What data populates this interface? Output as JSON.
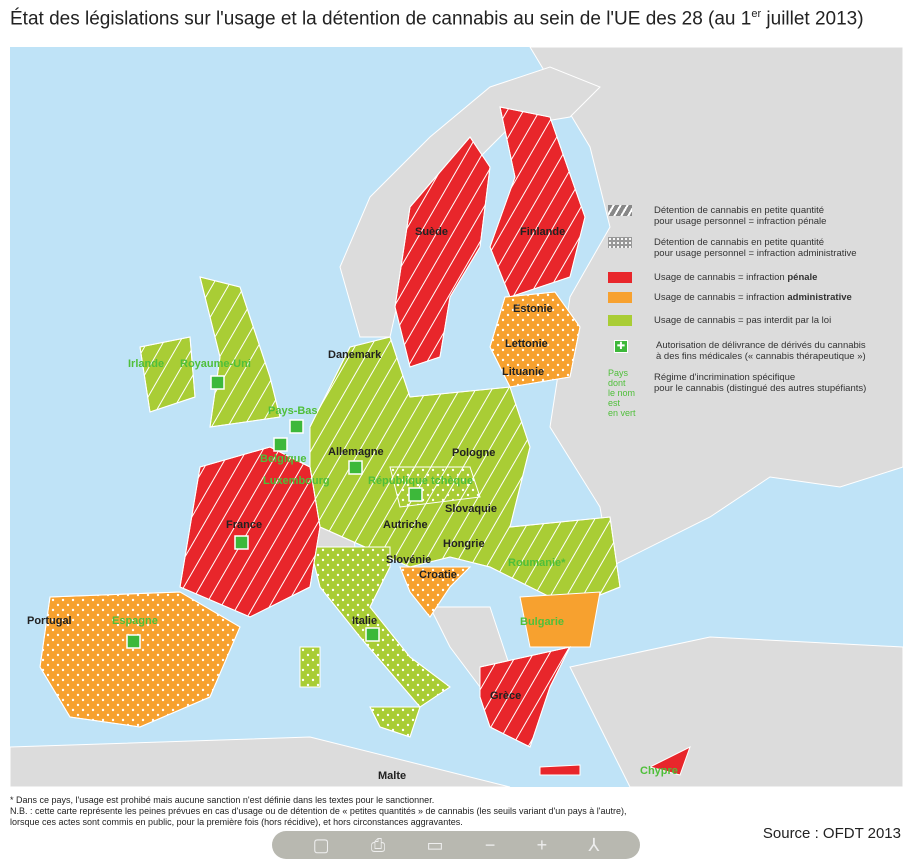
{
  "title": {
    "main": "État des législations sur l'usage et la détention de cannabis au sein de l'UE des 28 (au 1",
    "sup": "er",
    "end": " juillet 2013)"
  },
  "colors": {
    "penal": "#e8262b",
    "administrative": "#f7a12f",
    "not_forbidden": "#a9cd35",
    "sea": "#bfe3f7",
    "land_other": "#dcdcdc",
    "green_name": "#4fbf3a"
  },
  "countries": [
    {
      "name": "Suède",
      "usage": "penal",
      "detention": "penal",
      "green_name": false,
      "medical": false
    },
    {
      "name": "Finlande",
      "usage": "penal",
      "detention": "penal",
      "green_name": false,
      "medical": false
    },
    {
      "name": "Estonie",
      "usage": "administrative",
      "detention": "administrative",
      "green_name": false,
      "medical": false
    },
    {
      "name": "Lettonie",
      "usage": "administrative",
      "detention": "administrative",
      "green_name": false,
      "medical": false
    },
    {
      "name": "Lituanie",
      "usage": "administrative",
      "detention": "administrative",
      "green_name": false,
      "medical": false
    },
    {
      "name": "Danemark",
      "usage": "not_forbidden",
      "detention": "penal",
      "green_name": false,
      "medical": false
    },
    {
      "name": "Irlande",
      "usage": "not_forbidden",
      "detention": "penal",
      "green_name": true,
      "medical": false
    },
    {
      "name": "Royaume-Uni",
      "usage": "not_forbidden",
      "detention": "penal",
      "green_name": true,
      "medical": true
    },
    {
      "name": "Pays-Bas",
      "usage": "not_forbidden",
      "detention": "administrative",
      "green_name": true,
      "medical": true
    },
    {
      "name": "Belgique",
      "usage": "not_forbidden",
      "detention": "penal",
      "green_name": true,
      "medical": true
    },
    {
      "name": "Luxembourg",
      "usage": "administrative",
      "detention": "administrative",
      "green_name": true,
      "medical": false
    },
    {
      "name": "Allemagne",
      "usage": "not_forbidden",
      "detention": "penal",
      "green_name": false,
      "medical": true
    },
    {
      "name": "Pologne",
      "usage": "not_forbidden",
      "detention": "penal",
      "green_name": false,
      "medical": false
    },
    {
      "name": "République tchèque",
      "usage": "not_forbidden",
      "detention": "administrative",
      "green_name": true,
      "medical": true
    },
    {
      "name": "Slovaquie",
      "usage": "not_forbidden",
      "detention": "penal",
      "green_name": false,
      "medical": false
    },
    {
      "name": "Autriche",
      "usage": "not_forbidden",
      "detention": "penal",
      "green_name": false,
      "medical": false
    },
    {
      "name": "Hongrie",
      "usage": "not_forbidden",
      "detention": "penal",
      "green_name": false,
      "medical": false
    },
    {
      "name": "Slovénie",
      "usage": "not_forbidden",
      "detention": "administrative",
      "green_name": false,
      "medical": false
    },
    {
      "name": "Croatie",
      "usage": "administrative",
      "detention": "administrative",
      "green_name": false,
      "medical": false
    },
    {
      "name": "Roumanie*",
      "usage": "not_forbidden",
      "detention": "penal",
      "green_name": true,
      "medical": false
    },
    {
      "name": "Bulgarie",
      "usage": "administrative",
      "detention": "penal",
      "green_name": true,
      "medical": false
    },
    {
      "name": "Grèce",
      "usage": "penal",
      "detention": "penal",
      "green_name": false,
      "medical": false
    },
    {
      "name": "Chypre",
      "usage": "penal",
      "detention": "penal",
      "green_name": true,
      "medical": false
    },
    {
      "name": "Malte",
      "usage": "penal",
      "detention": "penal",
      "green_name": false,
      "medical": false
    },
    {
      "name": "Italie",
      "usage": "not_forbidden",
      "detention": "administrative",
      "green_name": false,
      "medical": true
    },
    {
      "name": "France",
      "usage": "penal",
      "detention": "penal",
      "green_name": false,
      "medical": true
    },
    {
      "name": "Espagne",
      "usage": "administrative",
      "detention": "administrative",
      "green_name": true,
      "medical": true
    },
    {
      "name": "Portugal",
      "usage": "administrative",
      "detention": "administrative",
      "green_name": false,
      "medical": false
    }
  ],
  "legend": {
    "hatch": [
      "Détention de cannabis en petite quantité",
      "pour usage personnel = infraction pénale"
    ],
    "dots": [
      "Détention de cannabis en petite quantité",
      "pour usage personnel = infraction administrative"
    ],
    "red": "Usage de cannabis = infraction ",
    "red_b": "pénale",
    "orange": "Usage de cannabis = infraction ",
    "orange_b": "administrative",
    "green": "Usage de cannabis = pas interdit par la loi",
    "cross": [
      "Autorisation de délivrance de dérivés du cannabis",
      "à des fins médicales (« cannabis  thérapeutique »)"
    ],
    "green_name_key": [
      "Pays dont",
      "le nom est",
      "en vert"
    ],
    "green_name": [
      "Régime d'incrimination spécifique",
      "pour le cannabis (distingué des autres stupéfiants)"
    ]
  },
  "footnotes": [
    "* Dans ce pays, l'usage est prohibé mais aucune sanction n'est définie dans les textes pour le sanctionner.",
    "N.B. : cette carte représente les peines prévues en cas d'usage ou de détention de « petites quantités » de cannabis (les seuils variant d'un pays à l'autre),",
    "lorsque ces actes sont commis en public, pour la première fois (hors récidive), et hors circonstances aggravantes."
  ],
  "source": "Source : OFDT 2013"
}
